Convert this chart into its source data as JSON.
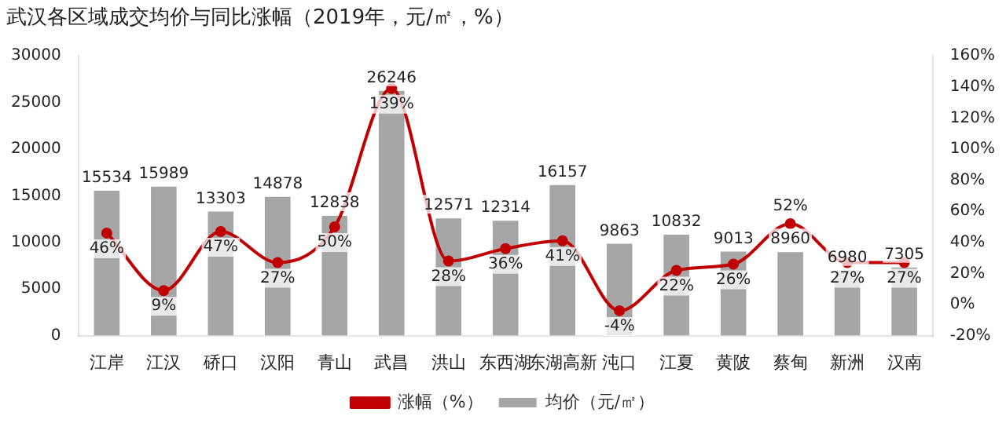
{
  "chart_data": {
    "type": "bar",
    "title": "武汉各区域成交均价与同比涨幅（2019年，元/㎡，%）",
    "categories": [
      "江岸",
      "江汉",
      "硚口",
      "汉阳",
      "青山",
      "武昌",
      "洪山",
      "东西湖",
      "东湖高新",
      "沌口",
      "江夏",
      "黄陂",
      "蔡甸",
      "新洲",
      "汉南"
    ],
    "series": [
      {
        "name": "均价（元/㎡）",
        "color": "#a6a6a6",
        "values": [
          15534,
          15989,
          13303,
          14878,
          12838,
          26246,
          12571,
          12314,
          16157,
          9863,
          10832,
          9013,
          8960,
          6980,
          7305
        ],
        "value_labels": [
          "15534",
          "15989",
          "13303",
          "14878",
          "12838",
          "26246",
          "12571",
          "12314",
          "16157",
          "9863",
          "10832",
          "9013",
          "8960",
          "6980",
          "7305"
        ]
      },
      {
        "name": "涨幅（%）",
        "type": "line",
        "axis": "y2",
        "color": "#c00000",
        "values": [
          46,
          9,
          47,
          27,
          50,
          139,
          28,
          36,
          41,
          -4,
          22,
          26,
          52,
          27,
          27
        ],
        "value_labels": [
          "46%",
          "9%",
          "47%",
          "27%",
          "50%",
          "139%",
          "28%",
          "36%",
          "41%",
          "-4%",
          "22%",
          "26%",
          "52%",
          "27%",
          "27%"
        ]
      }
    ],
    "ylim": [
      0,
      30000
    ],
    "yticks": [
      0,
      5000,
      10000,
      15000,
      20000,
      25000,
      30000
    ],
    "y2lim": [
      -20,
      160
    ],
    "y2ticks": [
      {
        "value": -20,
        "label": "-20%"
      },
      {
        "value": 0,
        "label": "0%"
      },
      {
        "value": 20,
        "label": "20%"
      },
      {
        "value": 40,
        "label": "40%"
      },
      {
        "value": 60,
        "label": "60%"
      },
      {
        "value": 80,
        "label": "80%"
      },
      {
        "value": 100,
        "label": "100%"
      },
      {
        "value": 120,
        "label": "120%"
      },
      {
        "value": 140,
        "label": "140%"
      },
      {
        "value": 160,
        "label": "160%"
      }
    ],
    "grid": false,
    "legend": "bottom",
    "marker": "circle",
    "line_style": "solid"
  }
}
